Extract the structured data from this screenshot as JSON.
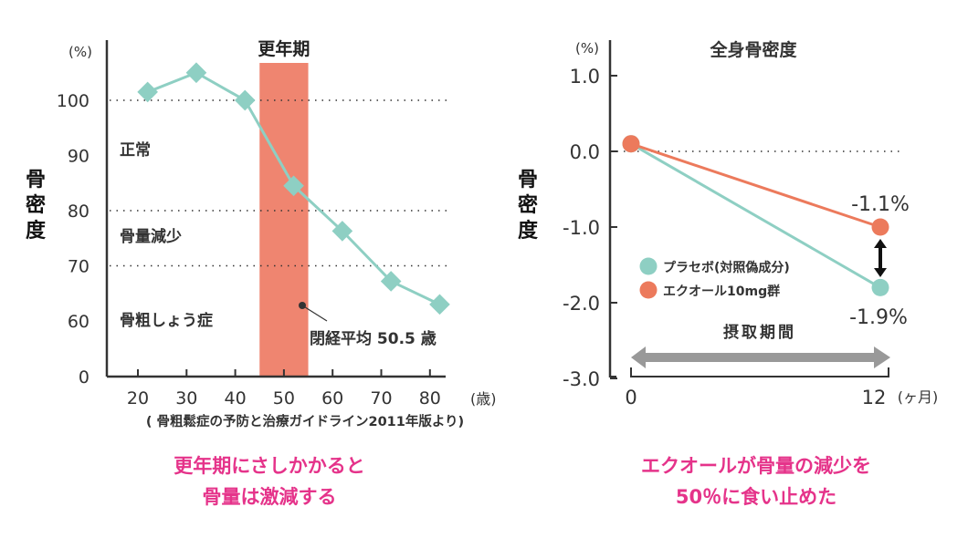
{
  "colors": {
    "teal": "#8ecfc3",
    "orange_line": "#ec7a5c",
    "band": "#ef8570",
    "caption": "#e5338a",
    "axis": "#333333",
    "arrow": "#999999"
  },
  "chart_data": [
    {
      "type": "line",
      "title": "",
      "ylabel": "骨密度",
      "yunit": "(%)",
      "xunit": "(歳)",
      "xticks": [
        "20",
        "30",
        "40",
        "50",
        "60",
        "70",
        "80"
      ],
      "yticks": [
        "100",
        "90",
        "80",
        "70",
        "60",
        "0"
      ],
      "ylim": [
        0,
        100
      ],
      "axis_break": "0–60",
      "grid": "dotted lines at 100, 80, 70",
      "series": [
        {
          "x": [
            22,
            32,
            42,
            52,
            62,
            72,
            82
          ],
          "y": [
            101.5,
            105,
            100,
            84.5,
            76.3,
            67.2,
            63
          ]
        }
      ],
      "band": {
        "label": "更年期",
        "from": 45,
        "to": 55
      },
      "zones": [
        "正常",
        "骨量減少",
        "骨粗しょう症"
      ],
      "annotation": "閉経平均 50.5 歳",
      "source": "( 骨粗鬆症の予防と治療ガイドライン2011年版より)",
      "caption": [
        "更年期にさしかかると",
        "骨量は激減する"
      ]
    },
    {
      "type": "line",
      "title": "全身骨密度",
      "ylabel": "骨密度",
      "yunit": "(%)",
      "xunit": "(ヶ月)",
      "xticks": [
        "0",
        "12"
      ],
      "yticks": [
        "1.0",
        "0.0",
        "-1.0",
        "-2.0",
        "-3.0"
      ],
      "ylim": [
        -3.0,
        1.0
      ],
      "grid": "dotted line at 0.0",
      "series": [
        {
          "name": "プラセボ(対照偽成分)",
          "x": [
            0,
            12
          ],
          "y": [
            0.1,
            -1.8
          ],
          "label": "-1.9%"
        },
        {
          "name": "エクオール10mg群",
          "x": [
            0,
            12
          ],
          "y": [
            0.1,
            -1.0
          ],
          "label": "-1.1%"
        }
      ],
      "legend": "center-left",
      "period_label": "摂取期間",
      "caption": [
        "エクオールが骨量の減少を",
        "50％に食い止めた"
      ]
    }
  ]
}
